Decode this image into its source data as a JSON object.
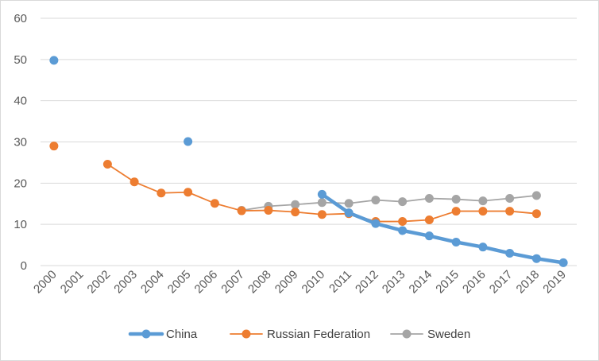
{
  "chart_data": {
    "type": "line",
    "title": "",
    "xlabel": "",
    "ylabel": "",
    "ylim": [
      0,
      60
    ],
    "yticks": [
      0,
      10,
      20,
      30,
      40,
      50,
      60
    ],
    "grid": true,
    "legend_position": "bottom",
    "categories": [
      "2000",
      "2001",
      "2002",
      "2003",
      "2004",
      "2005",
      "2006",
      "2007",
      "2008",
      "2009",
      "2010",
      "2011",
      "2012",
      "2013",
      "2014",
      "2015",
      "2016",
      "2017",
      "2018",
      "2019"
    ],
    "series": [
      {
        "name": "China",
        "color": "#5b9bd5",
        "values": [
          49.8,
          null,
          null,
          null,
          null,
          30.1,
          null,
          null,
          null,
          null,
          17.3,
          12.8,
          10.2,
          8.5,
          7.2,
          5.7,
          4.5,
          3.0,
          1.7,
          0.7
        ]
      },
      {
        "name": "Russian Federation",
        "color": "#ed7d31",
        "values": [
          29.0,
          null,
          24.6,
          20.3,
          17.6,
          17.8,
          15.1,
          13.3,
          13.4,
          13.0,
          12.4,
          12.6,
          10.7,
          10.7,
          11.1,
          13.2,
          13.2,
          13.2,
          12.6,
          null
        ]
      },
      {
        "name": "Sweden",
        "color": "#a5a5a5",
        "values": [
          null,
          null,
          null,
          null,
          null,
          null,
          null,
          13.4,
          14.4,
          14.8,
          15.3,
          15.1,
          15.9,
          15.5,
          16.3,
          16.1,
          15.7,
          16.3,
          17.0,
          null
        ]
      }
    ]
  }
}
